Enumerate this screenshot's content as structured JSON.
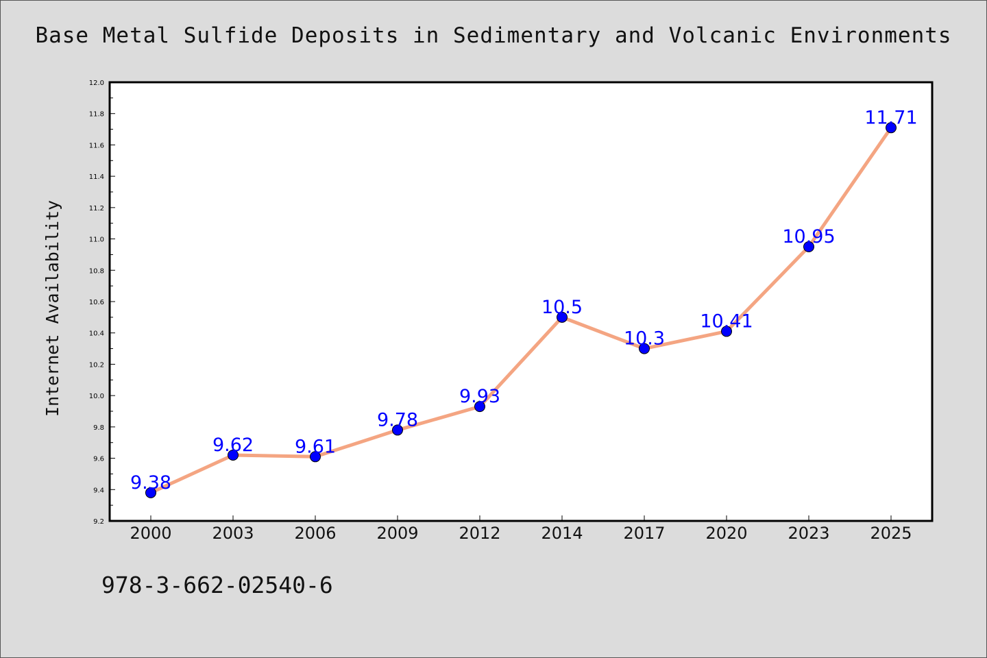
{
  "title": "Base Metal Sulfide Deposits in Sedimentary and Volcanic Environments",
  "footer_text": "978-3-662-02540-6",
  "colors": {
    "line": "#f4a582",
    "marker": "#0000ff",
    "label": "#0000ff",
    "plot_bg": "#ffffff",
    "page_bg": "#dcdcdc"
  },
  "chart_data": {
    "type": "line",
    "title": "Base Metal Sulfide Deposits in Sedimentary and Volcanic Environments",
    "xlabel": "",
    "ylabel": "Internet Availability",
    "categories": [
      "2000",
      "2003",
      "2006",
      "2009",
      "2012",
      "2014",
      "2017",
      "2020",
      "2023",
      "2025"
    ],
    "series": [
      {
        "values": [
          9.38,
          9.62,
          9.61,
          9.78,
          9.93,
          10.5,
          10.3,
          10.41,
          10.95,
          11.71
        ]
      }
    ],
    "data_labels": [
      "9.38",
      "9.62",
      "9.61",
      "9.78",
      "9.93",
      "10.5",
      "10.3",
      "10.41",
      "10.95",
      "11.71"
    ],
    "ylim": [
      9.2,
      12.0
    ],
    "yticks": [
      "9.2",
      "9.4",
      "9.6",
      "9.8",
      "10.0",
      "10.2",
      "10.4",
      "10.6",
      "10.8",
      "11.0",
      "11.2",
      "11.4",
      "11.6",
      "11.8",
      "12.0"
    ],
    "grid": false,
    "legend": "none"
  }
}
